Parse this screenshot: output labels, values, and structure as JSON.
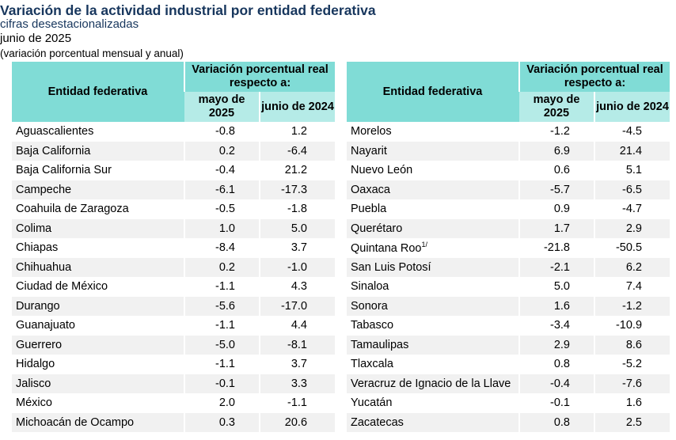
{
  "title": "Variación de la actividad industrial por entidad federativa",
  "subtitle": "cifras desestacionalizadas",
  "period": "junio de 2025",
  "note": "(variación porcentual mensual y anual)",
  "header": {
    "entity": "Entidad federativa",
    "group": "Variación porcentual real respecto a:",
    "col1": "mayo de 2025",
    "col2": "junio de 2024"
  },
  "colors": {
    "header": "#80dcd6",
    "subheader": "#b5ebe7",
    "title": "#17365d",
    "stripe": "#f1f1f1"
  },
  "left_rows": [
    {
      "name": "Aguascalientes",
      "m": "-0.8",
      "a": "1.2"
    },
    {
      "name": "Baja California",
      "m": "0.2",
      "a": "-6.4"
    },
    {
      "name": "Baja California Sur",
      "m": "-0.4",
      "a": "21.2"
    },
    {
      "name": "Campeche",
      "m": "-6.1",
      "a": "-17.3"
    },
    {
      "name": "Coahuila de Zaragoza",
      "m": "-0.5",
      "a": "-1.8"
    },
    {
      "name": "Colima",
      "m": "1.0",
      "a": "5.0"
    },
    {
      "name": "Chiapas",
      "m": "-8.4",
      "a": "3.7"
    },
    {
      "name": "Chihuahua",
      "m": "0.2",
      "a": "-1.0"
    },
    {
      "name": "Ciudad de México",
      "m": "-1.1",
      "a": "4.3"
    },
    {
      "name": "Durango",
      "m": "-5.6",
      "a": "-17.0"
    },
    {
      "name": "Guanajuato",
      "m": "-1.1",
      "a": "4.4"
    },
    {
      "name": "Guerrero",
      "m": "-5.0",
      "a": "-8.1"
    },
    {
      "name": "Hidalgo",
      "m": "-1.1",
      "a": "3.7"
    },
    {
      "name": "Jalisco",
      "m": "-0.1",
      "a": "3.3"
    },
    {
      "name": "México",
      "m": "2.0",
      "a": "-1.1"
    },
    {
      "name": "Michoacán de Ocampo",
      "m": "0.3",
      "a": "20.6"
    }
  ],
  "right_rows": [
    {
      "name": "Morelos",
      "m": "-1.2",
      "a": "-4.5"
    },
    {
      "name": "Nayarit",
      "m": "6.9",
      "a": "21.4"
    },
    {
      "name": "Nuevo León",
      "m": "0.6",
      "a": "5.1"
    },
    {
      "name": "Oaxaca",
      "m": "-5.7",
      "a": "-6.5"
    },
    {
      "name": "Puebla",
      "m": "0.9",
      "a": "-4.7"
    },
    {
      "name": "Querétaro",
      "m": "1.7",
      "a": "2.9"
    },
    {
      "name": "Quintana Roo",
      "sup": "1/",
      "m": "-21.8",
      "a": "-50.5"
    },
    {
      "name": "San Luis Potosí",
      "m": "-2.1",
      "a": "6.2"
    },
    {
      "name": "Sinaloa",
      "m": "5.0",
      "a": "7.4"
    },
    {
      "name": "Sonora",
      "m": "1.6",
      "a": "-1.2"
    },
    {
      "name": "Tabasco",
      "m": "-3.4",
      "a": "-10.9"
    },
    {
      "name": "Tamaulipas",
      "m": "2.9",
      "a": "8.6"
    },
    {
      "name": "Tlaxcala",
      "m": "0.8",
      "a": "-5.2"
    },
    {
      "name": "Veracruz de Ignacio de la Llave",
      "m": "-0.4",
      "a": "-7.6"
    },
    {
      "name": "Yucatán",
      "m": "-0.1",
      "a": "1.6"
    },
    {
      "name": "Zacatecas",
      "m": "0.8",
      "a": "2.5"
    }
  ]
}
